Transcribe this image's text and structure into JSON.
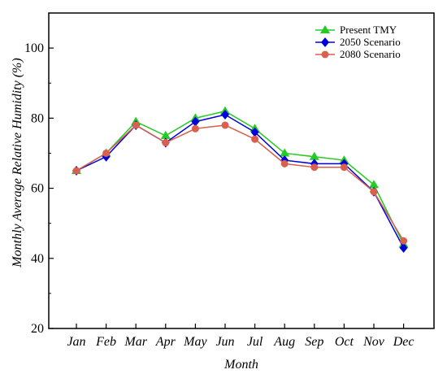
{
  "chart_data": {
    "type": "line",
    "title": "",
    "xlabel": "Month",
    "ylabel": "Monthly Average Relative Humidity  (%)",
    "categories": [
      "Jan",
      "Feb",
      "Mar",
      "Apr",
      "May",
      "Jun",
      "Jul",
      "Aug",
      "Sep",
      "Oct",
      "Nov",
      "Dec"
    ],
    "ylim": [
      20,
      110
    ],
    "yticks": [
      20,
      40,
      60,
      80,
      100
    ],
    "grid": false,
    "legend_position": "top-right",
    "series": [
      {
        "name": "Present TMY",
        "color": "#22cc22",
        "marker": "triangle",
        "values": [
          65,
          70,
          79,
          75,
          80,
          82,
          77,
          70,
          69,
          68,
          61,
          44
        ]
      },
      {
        "name": "2050 Scenario",
        "color": "#0000dd",
        "marker": "diamond",
        "values": [
          65,
          69,
          78,
          73,
          79,
          81,
          76,
          68,
          67,
          67,
          59,
          43
        ]
      },
      {
        "name": "2080 Scenario",
        "color": "#d95f4e",
        "marker": "circle",
        "values": [
          65,
          70,
          78,
          73,
          77,
          78,
          74,
          67,
          66,
          66,
          59,
          45
        ]
      }
    ]
  }
}
